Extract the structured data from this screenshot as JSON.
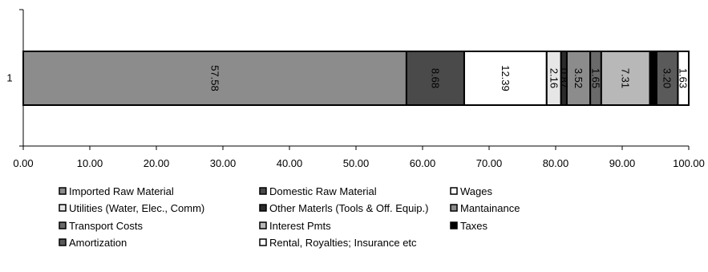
{
  "chart_data": {
    "type": "bar",
    "orientation": "horizontal",
    "stacked": true,
    "categories": [
      "1"
    ],
    "xlim": [
      0,
      100
    ],
    "x_ticks": [
      "0.00",
      "10.00",
      "20.00",
      "30.00",
      "40.00",
      "50.00",
      "60.00",
      "70.00",
      "80.00",
      "90.00",
      "100.00"
    ],
    "grid": false,
    "legend_position": "bottom",
    "series": [
      {
        "name": "Imported Raw Material",
        "values": [
          57.58
        ],
        "label": "57.58",
        "color": "#8c8c8c"
      },
      {
        "name": "Domestic Raw Material",
        "values": [
          8.68
        ],
        "label": "8.68",
        "color": "#4a4a4a"
      },
      {
        "name": "Wages",
        "values": [
          12.39
        ],
        "label": "12.39",
        "color": "#ffffff"
      },
      {
        "name": "Utilities (Water, Elec., Comm)",
        "values": [
          2.16
        ],
        "label": "2.16",
        "color": "#e6e6e6"
      },
      {
        "name": "Other Materls (Tools & Off. Equip.)",
        "values": [
          0.87
        ],
        "label": "0.87",
        "color": "#2b2b2b"
      },
      {
        "name": "Mantainance",
        "values": [
          3.52
        ],
        "label": "3.52",
        "color": "#8c8c8c"
      },
      {
        "name": "Transport Costs",
        "values": [
          1.65
        ],
        "label": "1.65",
        "color": "#6a6a6a"
      },
      {
        "name": "Interest Pmts",
        "values": [
          7.31
        ],
        "label": "7.31",
        "color": "#b8b8b8"
      },
      {
        "name": "Taxes",
        "values": [
          1.01
        ],
        "label": "1.01",
        "color": "#000000"
      },
      {
        "name": "Amortization",
        "values": [
          3.2
        ],
        "label": "3.20",
        "color": "#5a5a5a"
      },
      {
        "name": "Rental, Royalties; Insurance etc",
        "values": [
          1.63
        ],
        "label": "1.63",
        "color": "#ffffff"
      }
    ]
  }
}
